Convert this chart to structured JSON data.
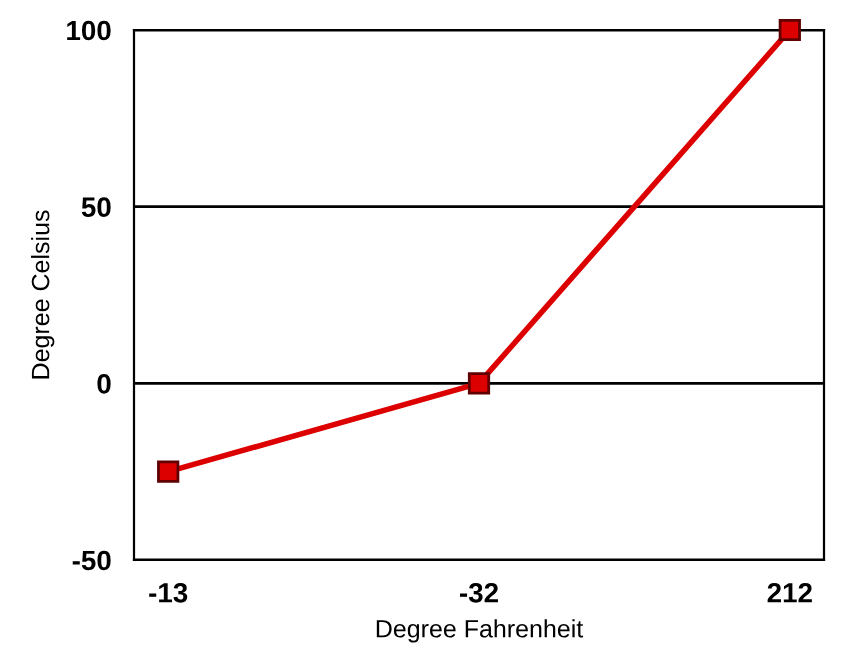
{
  "chart_data": {
    "type": "line",
    "xlabel": "Degree Fahrenheit",
    "ylabel": "Degree Celsius",
    "categories": [
      "-13",
      "-32",
      "212"
    ],
    "series": [
      {
        "color": "#dd0000",
        "values": [
          -25,
          0,
          100
        ]
      }
    ],
    "ylim": [
      -50,
      100
    ],
    "yticks": [
      -50,
      0,
      50,
      100
    ],
    "grid": "y",
    "marker": "square",
    "line_style": "solid",
    "legend": false
  }
}
